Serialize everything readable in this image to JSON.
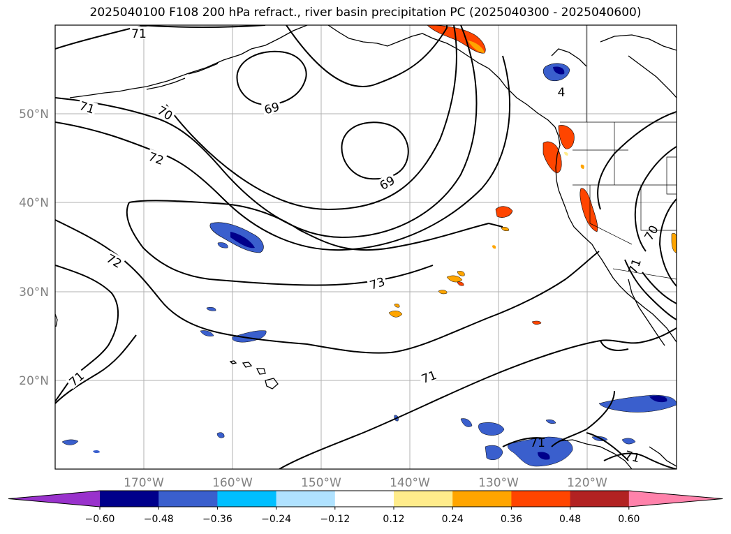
{
  "title": "2025040100 F108 200 hPa refract., river basin precipitation PC (2025040300 - 2025040600)",
  "map": {
    "projection": "PlateCarree",
    "lon_range": [
      -180,
      -110
    ],
    "lat_range": [
      10,
      60
    ],
    "grid": true,
    "lon_ticks": [
      "170°W",
      "160°W",
      "150°W",
      "140°W",
      "130°W",
      "120°W"
    ],
    "lat_ticks": [
      "50°N",
      "40°N",
      "30°N",
      "20°N"
    ]
  },
  "contours": {
    "field": "200 hPa refractivity",
    "levels": [
      69,
      70,
      71,
      72,
      73
    ],
    "labels": [
      "71",
      "71",
      "70",
      "69",
      "72",
      "69",
      "72",
      "73",
      "71",
      "71",
      "71",
      "71",
      "70",
      "71",
      "4"
    ]
  },
  "colorbar": {
    "extend": "both",
    "ticks": [
      "−0.60",
      "−0.48",
      "−0.36",
      "−0.24",
      "−0.12",
      "0.12",
      "0.24",
      "0.36",
      "0.48",
      "0.60"
    ],
    "colors": [
      "#9932cc",
      "#00008b",
      "#3a5fcd",
      "#00bfff",
      "#b0e2ff",
      "#ffffff",
      "#ffec8b",
      "#ffa500",
      "#ff4500",
      "#b22222",
      "#ff82ab"
    ]
  }
}
